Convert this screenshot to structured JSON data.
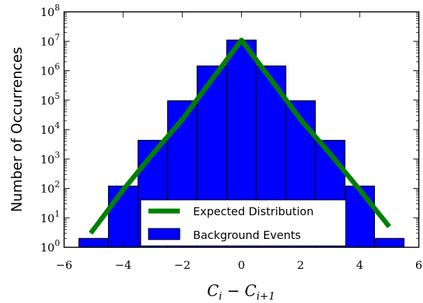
{
  "chart_data": {
    "type": "bar",
    "log_scale_y": true,
    "xlim": [
      -6,
      6
    ],
    "ylim_exponent": [
      0,
      8
    ],
    "x_ticks": [
      -6,
      -4,
      -2,
      0,
      2,
      4,
      6
    ],
    "x_tick_labels": [
      "−6",
      "−4",
      "−2",
      "0",
      "2",
      "4",
      "6"
    ],
    "y_tick_exponents": [
      0,
      1,
      2,
      3,
      4,
      5,
      6,
      7,
      8
    ],
    "y_tick_base": "10",
    "xlabel_main": "C",
    "xlabel_sub1": "i",
    "xlabel_minus": " − C",
    "xlabel_sub2": "i+1",
    "ylabel": "Number of Occurrences",
    "bins": [
      {
        "x0": -5.5,
        "x1": -4.5,
        "value": 2
      },
      {
        "x0": -4.5,
        "x1": -3.5,
        "value": 120
      },
      {
        "x0": -3.5,
        "x1": -2.5,
        "value": 4300
      },
      {
        "x0": -2.5,
        "x1": -1.5,
        "value": 95000
      },
      {
        "x0": -1.5,
        "x1": -0.5,
        "value": 1450000
      },
      {
        "x0": -0.5,
        "x1": 0.5,
        "value": 11000000
      },
      {
        "x0": 0.5,
        "x1": 1.5,
        "value": 1450000
      },
      {
        "x0": 1.5,
        "x1": 2.5,
        "value": 95000
      },
      {
        "x0": 2.5,
        "x1": 3.5,
        "value": 4300
      },
      {
        "x0": 3.5,
        "x1": 4.5,
        "value": 120
      },
      {
        "x0": 4.5,
        "x1": 5.5,
        "value": 2
      }
    ],
    "expected_curve": {
      "x": [
        -5.1,
        -4,
        -3,
        -2,
        -1,
        0,
        1,
        2,
        3,
        4,
        5
      ],
      "y": [
        3,
        90,
        1500,
        22000,
        500000,
        11000000,
        500000,
        22000,
        1500,
        90,
        5
      ]
    },
    "series": [
      {
        "name": "Expected Distribution",
        "color": "#008000"
      },
      {
        "name": "Background Events",
        "color": "#0000ff"
      }
    ],
    "legend_position": "lower-center",
    "grid": false
  }
}
